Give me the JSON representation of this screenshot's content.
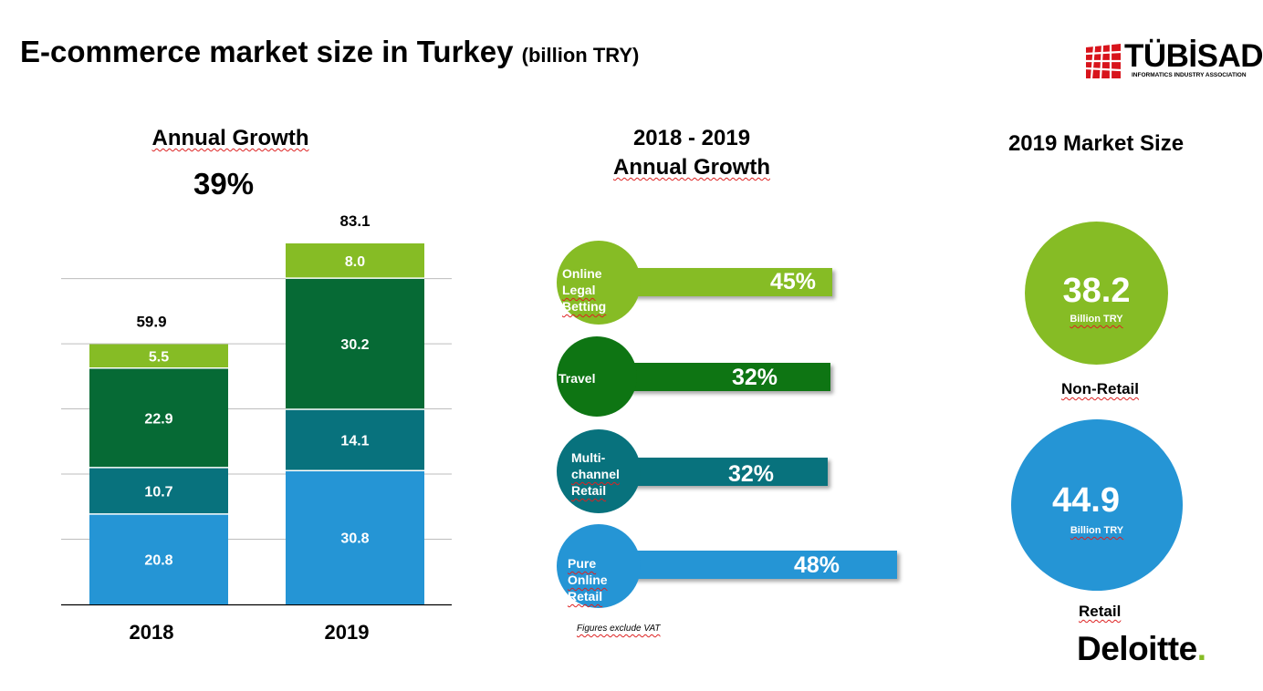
{
  "title": {
    "main": "E-commerce market size in Turkey",
    "unit": "(billion TRY)"
  },
  "logo": {
    "name": "TÜBİSAD",
    "subtitle": "INFORMATICS INDUSTRY ASSOCIATION"
  },
  "left_panel": {
    "heading": "Annual Growth",
    "growth_value": "39%"
  },
  "middle_panel": {
    "heading_line1": "2018 - 2019",
    "heading_line2": "Annual Growth",
    "note": "Figures exclude VAT"
  },
  "right_panel": {
    "heading": "2019 Market Size"
  },
  "colors": {
    "light_green": "#86bc25",
    "dark_green": "#066a35",
    "teal": "#08727d",
    "blue": "#2595d5",
    "travel_green": "#0e7513"
  },
  "chart_data": {
    "type": "bar",
    "stacked": true,
    "categories": [
      "2018",
      "2019"
    ],
    "totals": [
      59.9,
      83.1
    ],
    "total_labels": [
      "59.9",
      "83.1"
    ],
    "series": [
      {
        "values": [
          20.8,
          30.8
        ],
        "labels": [
          "20.8",
          "30.8"
        ],
        "color": "#2595d5"
      },
      {
        "values": [
          10.7,
          14.1
        ],
        "labels": [
          "10.7",
          "14.1"
        ],
        "color": "#08727d"
      },
      {
        "values": [
          22.9,
          30.2
        ],
        "labels": [
          "22.9",
          "30.2"
        ],
        "color": "#066a35"
      },
      {
        "values": [
          5.5,
          8.0
        ],
        "labels": [
          "5.5",
          "8.0"
        ],
        "color": "#86bc25"
      }
    ],
    "ylim": [
      0,
      90
    ],
    "grid": true
  },
  "growth_bars": [
    {
      "label_lines": [
        "Online",
        "Legal Betting"
      ],
      "pct": "45%",
      "value": 45,
      "color": "#86bc25"
    },
    {
      "label_lines": [
        "Travel"
      ],
      "pct": "32%",
      "value": 32,
      "color": "#0e7513"
    },
    {
      "label_lines": [
        "Multi-",
        "channel",
        "Retail"
      ],
      "pct": "32%",
      "value": 32,
      "color": "#08727d"
    },
    {
      "label_lines": [
        "Pure Online",
        "Retail"
      ],
      "pct": "48%",
      "value": 48,
      "color": "#2595d5"
    }
  ],
  "market_size": [
    {
      "value": "38.2",
      "unit": "Billion TRY",
      "label": "Non-Retail",
      "color": "#86bc25"
    },
    {
      "value": "44.9",
      "unit": "Billion TRY",
      "label": "Retail",
      "color": "#2595d5"
    }
  ],
  "footer_brand": {
    "name": "Deloitte",
    "dot": "."
  }
}
